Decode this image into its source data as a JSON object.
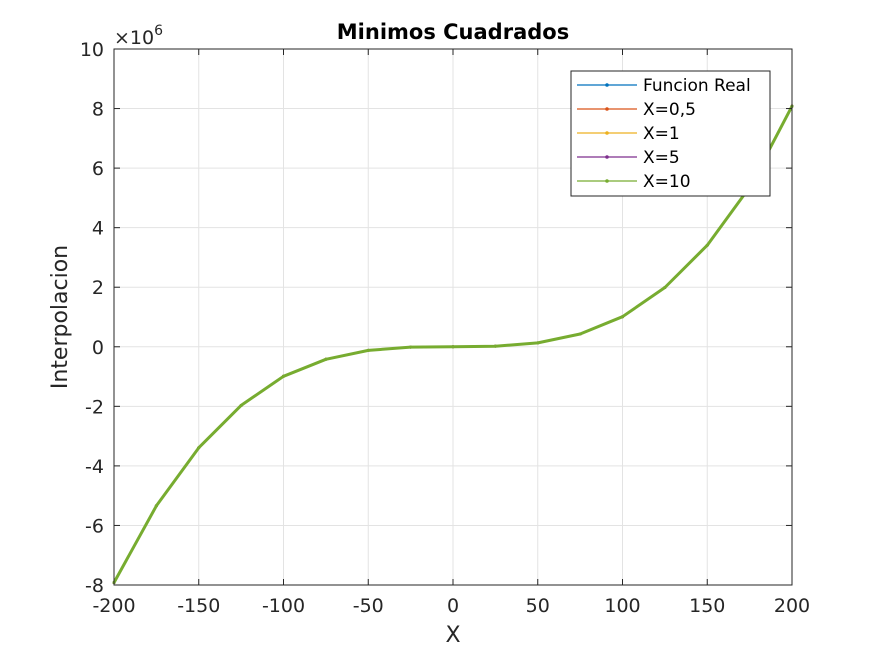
{
  "chart_data": {
    "type": "line",
    "title": "Minimos Cuadrados",
    "xlabel": "X",
    "ylabel": "Interpolacion",
    "y_exponent_label": "×10",
    "y_exponent_power": "6",
    "xlim": [
      -200,
      200
    ],
    "ylim": [
      -8,
      10
    ],
    "y_scale": 1000000,
    "x_ticks": [
      "-200",
      "-150",
      "-100",
      "-50",
      "0",
      "50",
      "100",
      "150",
      "200"
    ],
    "x_tick_values": [
      -200,
      -150,
      -100,
      -50,
      0,
      50,
      100,
      150,
      200
    ],
    "y_ticks": [
      "-8",
      "-6",
      "-4",
      "-2",
      "0",
      "2",
      "4",
      "6",
      "8",
      "10"
    ],
    "y_tick_values": [
      -8,
      -6,
      -4,
      -2,
      0,
      2,
      4,
      6,
      8,
      10
    ],
    "grid": true,
    "legend_position": "top-right",
    "x": [
      -200,
      -175,
      -150,
      -125,
      -100,
      -75,
      -50,
      -25,
      0,
      25,
      50,
      75,
      100,
      125,
      150,
      175,
      200
    ],
    "series": [
      {
        "name": "Funcion Real",
        "color": "#0072BD",
        "values": [
          -7.92,
          -5.34,
          -3.39,
          -1.97,
          -0.99,
          -0.42,
          -0.12,
          -0.01,
          0.0,
          0.02,
          0.13,
          0.43,
          1.01,
          1.99,
          3.41,
          5.36,
          8.08
        ]
      },
      {
        "name": "X=0,5",
        "color": "#D95319",
        "values": [
          -7.92,
          -5.34,
          -3.39,
          -1.97,
          -0.99,
          -0.42,
          -0.12,
          -0.01,
          0.0,
          0.02,
          0.13,
          0.43,
          1.01,
          1.99,
          3.41,
          5.36,
          8.08
        ]
      },
      {
        "name": "X=1",
        "color": "#EDB120",
        "values": [
          -7.92,
          -5.34,
          -3.39,
          -1.97,
          -0.99,
          -0.42,
          -0.12,
          -0.01,
          0.0,
          0.02,
          0.13,
          0.43,
          1.01,
          1.99,
          3.41,
          5.36,
          8.08
        ]
      },
      {
        "name": "X=5",
        "color": "#7E2F8E",
        "values": [
          -7.92,
          -5.34,
          -3.39,
          -1.97,
          -0.99,
          -0.42,
          -0.12,
          -0.01,
          0.0,
          0.02,
          0.13,
          0.43,
          1.01,
          1.99,
          3.41,
          5.36,
          8.08
        ]
      },
      {
        "name": "X=10",
        "color": "#77AC30",
        "values": [
          -7.92,
          -5.34,
          -3.39,
          -1.97,
          -0.99,
          -0.42,
          -0.12,
          -0.01,
          0.0,
          0.02,
          0.13,
          0.43,
          1.01,
          1.99,
          3.41,
          5.36,
          8.08
        ]
      }
    ]
  }
}
